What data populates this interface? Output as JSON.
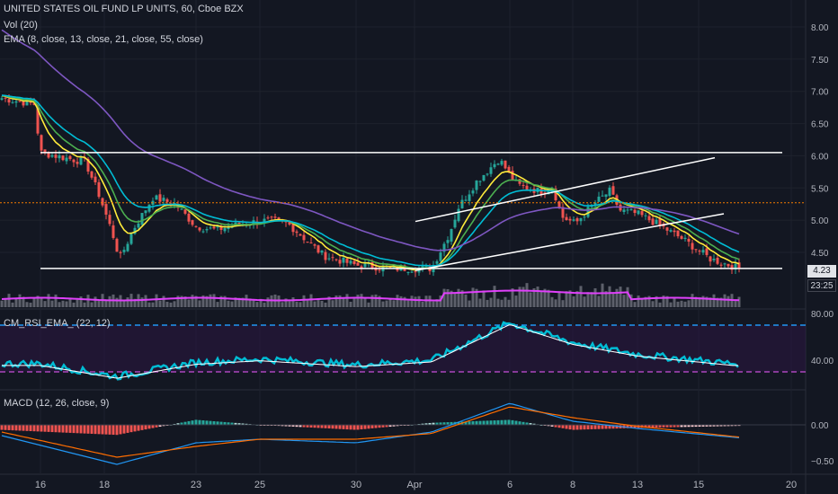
{
  "header": {
    "title": "UNITED STATES OIL FUND LP UNITS, 60, Cboe BZX",
    "vol_label": "Vol (20)",
    "ema_label": "EMA (8, close, 13, close, 21, close, 55, close)"
  },
  "price_panel": {
    "y_ticks": [
      "8.00",
      "7.50",
      "7.00",
      "6.50",
      "6.00",
      "5.50",
      "5.00",
      "4.50"
    ],
    "y_tick_values": [
      8.0,
      7.5,
      7.0,
      6.5,
      6.0,
      5.5,
      5.0,
      4.5
    ],
    "last_price": "4.23",
    "countdown": "23:25",
    "colors": {
      "up": "#26a69a",
      "down": "#ef5350",
      "ema8": "#ffeb3b",
      "ema13": "#4caf50",
      "ema21": "#00bcd4",
      "ema55": "#7e57c2",
      "volume_ma": "#e040fb",
      "volume": "#5d606b"
    }
  },
  "rsi_panel": {
    "label": "CM_RSI_EMA_ (22, 12)",
    "y_ticks": [
      "80.00",
      "40.00"
    ],
    "y_tick_values": [
      80,
      40
    ]
  },
  "macd_panel": {
    "label": "MACD (12, 26, close, 9)",
    "y_ticks": [
      "0.00",
      "−0.50"
    ],
    "y_tick_values": [
      0,
      -0.5
    ]
  },
  "x_axis": {
    "labels": [
      "16",
      "18",
      "23",
      "25",
      "30",
      "Apr",
      "6",
      "8",
      "13",
      "15",
      "20"
    ]
  },
  "chart_data": [
    {
      "type": "line",
      "title": "UNITED STATES OIL FUND LP UNITS, 60, Cboe BZX",
      "x": [
        "16",
        "18",
        "23",
        "25",
        "30",
        "Apr",
        "6",
        "8",
        "13",
        "15"
      ],
      "series": [
        {
          "name": "Close",
          "values": [
            6.75,
            5.0,
            5.0,
            4.9,
            4.25,
            4.4,
            6.0,
            5.05,
            5.25,
            4.25
          ]
        },
        {
          "name": "EMA (8, close, 13, close, 21, close, 55, close)",
          "values": [
            6.9,
            6.3,
            5.6,
            5.2,
            4.6,
            4.4,
            5.3,
            5.4,
            5.1,
            4.8
          ]
        }
      ],
      "ylim": [
        4.1,
        8.2
      ],
      "horizontal_lines": [
        6.05,
        4.25,
        5.27
      ],
      "last_value": 4.23
    },
    {
      "type": "line",
      "title": "CM_RSI_EMA_ (22, 12)",
      "x": [
        "16",
        "18",
        "23",
        "25",
        "30",
        "Apr",
        "6",
        "8",
        "13",
        "15"
      ],
      "series": [
        {
          "values": [
            37,
            26,
            38,
            41,
            36,
            40,
            72,
            55,
            45,
            37
          ]
        }
      ],
      "ylim": [
        20,
        82
      ],
      "reference_lines": [
        70,
        30
      ]
    },
    {
      "type": "line",
      "title": "MACD (12, 26, close, 9)",
      "x": [
        "16",
        "18",
        "23",
        "25",
        "30",
        "Apr",
        "6",
        "8",
        "13",
        "15"
      ],
      "series": [
        {
          "values": [
            -0.15,
            -0.55,
            -0.25,
            -0.2,
            -0.25,
            -0.1,
            0.3,
            0.05,
            -0.05,
            -0.18
          ]
        },
        {
          "values": [
            -0.1,
            -0.45,
            -0.3,
            -0.2,
            -0.2,
            -0.12,
            0.25,
            0.1,
            -0.02,
            -0.17
          ]
        }
      ],
      "ylim": [
        -0.6,
        0.35
      ]
    }
  ]
}
